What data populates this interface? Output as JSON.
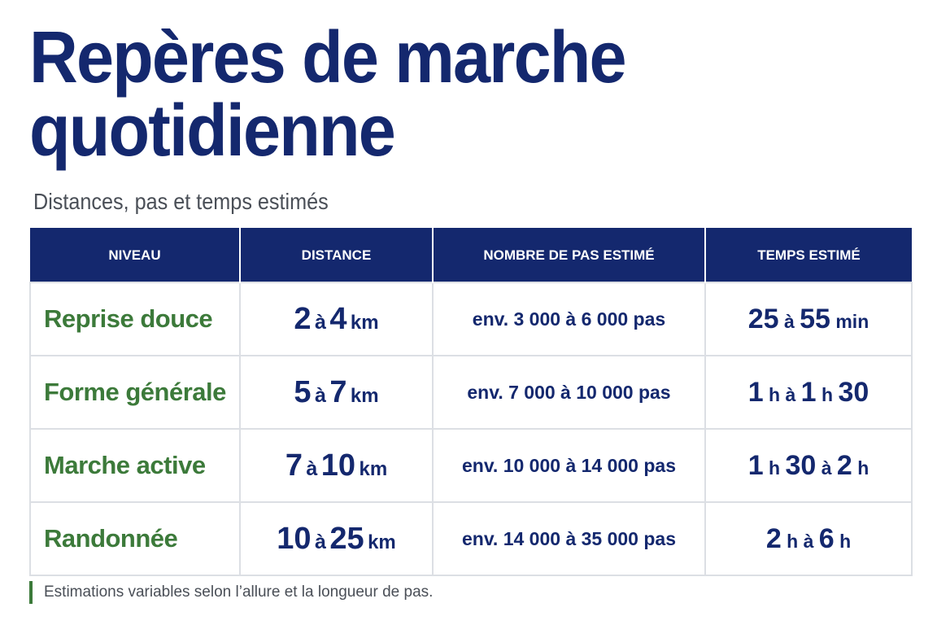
{
  "title": "Repères de marche quotidienne",
  "subtitle": "Distances, pas et temps estimés",
  "headers": {
    "level": "NIVEAU",
    "distance": "DISTANCE",
    "steps": "NOMBRE DE PAS ESTIMÉ",
    "time": "TEMPS ESTIMÉ"
  },
  "rows": [
    {
      "level": "Reprise douce",
      "dist_min": "2",
      "dist_conn": "à",
      "dist_max": "4",
      "dist_unit": "km",
      "steps": "env. 3 000 à 6 000 pas",
      "time": [
        {
          "t": "25",
          "c": "tbig"
        },
        {
          "t": " à ",
          "c": "tsm"
        },
        {
          "t": "55",
          "c": "tbig"
        },
        {
          "t": " min",
          "c": "tsm"
        }
      ]
    },
    {
      "level": "Forme générale",
      "dist_min": "5",
      "dist_conn": "à",
      "dist_max": "7",
      "dist_unit": "km",
      "steps": "env. 7 000 à 10 000 pas",
      "time": [
        {
          "t": "1",
          "c": "tbig"
        },
        {
          "t": " h à ",
          "c": "tsm"
        },
        {
          "t": "1",
          "c": "tbig"
        },
        {
          "t": " h ",
          "c": "tsm"
        },
        {
          "t": "30",
          "c": "tbig"
        }
      ]
    },
    {
      "level": "Marche active",
      "dist_min": "7",
      "dist_conn": "à",
      "dist_max": "10",
      "dist_unit": "km",
      "steps": "env. 10 000 à 14 000 pas",
      "time": [
        {
          "t": "1",
          "c": "tbig"
        },
        {
          "t": " h ",
          "c": "tsm"
        },
        {
          "t": "30",
          "c": "tbig"
        },
        {
          "t": " à ",
          "c": "tsm"
        },
        {
          "t": "2",
          "c": "tbig"
        },
        {
          "t": " h",
          "c": "tsm"
        }
      ]
    },
    {
      "level": "Randonnée",
      "dist_min": "10",
      "dist_conn": "à",
      "dist_max": "25",
      "dist_unit": "km",
      "steps": "env. 14 000 à 35 000 pas",
      "time": [
        {
          "t": "2",
          "c": "tbig"
        },
        {
          "t": " h à ",
          "c": "tsm"
        },
        {
          "t": "6",
          "c": "tbig"
        },
        {
          "t": " h",
          "c": "tsm"
        }
      ]
    }
  ],
  "footnote": "Estimations variables selon l’allure et la longueur de pas.",
  "colors": {
    "navy": "#14286e",
    "green": "#3c7a3a",
    "gray_text": "#4a4f57",
    "grid_line": "#dcdfe4"
  }
}
